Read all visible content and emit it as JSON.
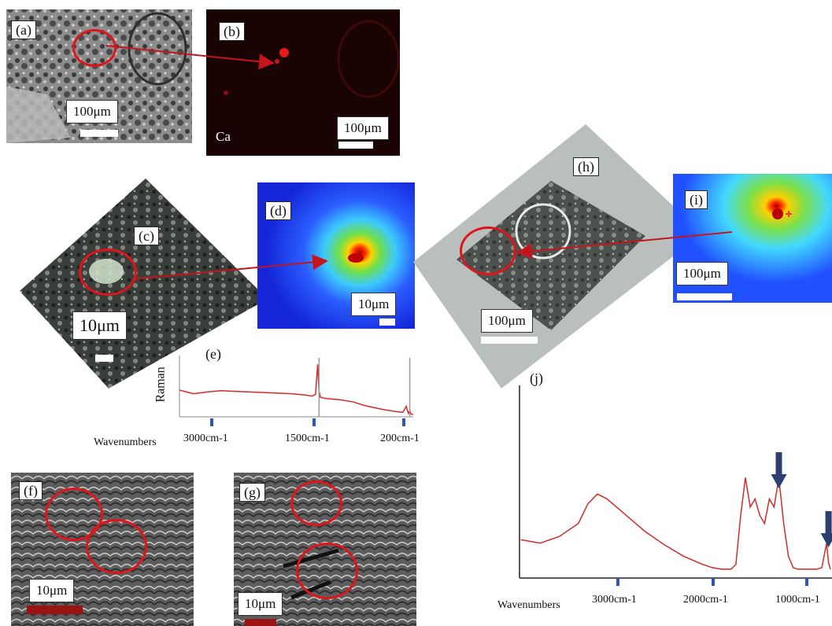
{
  "panels": {
    "a": {
      "label": "(a)",
      "scale": "100μm"
    },
    "b": {
      "label": "(b)",
      "scale": "100μm",
      "element": "Ca"
    },
    "c": {
      "label": "(c)",
      "scale": "10μm"
    },
    "d": {
      "label": "(d)",
      "scale": "10μm"
    },
    "e": {
      "label": "(e)"
    },
    "f": {
      "label": "(f)",
      "scale": "10μm"
    },
    "g": {
      "label": "(g)",
      "scale": "10μm"
    },
    "h": {
      "label": "(h)",
      "scale": "100μm"
    },
    "i": {
      "label": "(i)",
      "scale": "100μm"
    },
    "j": {
      "label": "(j)"
    }
  },
  "chart_data": [
    {
      "type": "line",
      "panel": "(e)",
      "ylabel": "Raman",
      "xlabel": "Wavenumbers",
      "xticks": [
        "3000cm-1",
        "1500cm-1",
        "200cm-1"
      ],
      "series": [
        {
          "x": [
            3500,
            3300,
            3100,
            2900,
            2700,
            2500,
            2300,
            2100,
            1900,
            1700,
            1600,
            1550,
            1520,
            1500,
            1480,
            1400,
            1200,
            1000,
            900,
            800,
            600,
            400,
            300,
            250,
            220,
            200,
            180,
            150
          ],
          "y": [
            0.42,
            0.36,
            0.39,
            0.41,
            0.4,
            0.39,
            0.38,
            0.37,
            0.36,
            0.34,
            0.32,
            0.35,
            0.85,
            0.4,
            0.3,
            0.28,
            0.26,
            0.22,
            0.18,
            0.15,
            0.1,
            0.06,
            0.05,
            0.15,
            0.03,
            0.08,
            0.02,
            0.01
          ]
        }
      ],
      "vlines": [
        1500,
        200
      ],
      "arrows": []
    },
    {
      "type": "line",
      "panel": "(j)",
      "xlabel": "Wavenumbers",
      "xticks": [
        "3000cm-1",
        "2000cm-1",
        "1000cm-1"
      ],
      "series": [
        {
          "x": [
            4000,
            3800,
            3600,
            3400,
            3300,
            3200,
            3100,
            3000,
            2900,
            2700,
            2500,
            2300,
            2100,
            2000,
            1900,
            1800,
            1750,
            1700,
            1650,
            1600,
            1550,
            1500,
            1450,
            1400,
            1350,
            1300,
            1250,
            1200,
            1150,
            1100,
            1000,
            900,
            850,
            800,
            780,
            760
          ],
          "y": [
            0.2,
            0.18,
            0.22,
            0.3,
            0.42,
            0.48,
            0.45,
            0.4,
            0.35,
            0.25,
            0.17,
            0.1,
            0.05,
            0.03,
            0.02,
            0.02,
            0.05,
            0.35,
            0.58,
            0.4,
            0.45,
            0.35,
            0.3,
            0.45,
            0.4,
            0.58,
            0.3,
            0.1,
            0.03,
            0.02,
            0.02,
            0.02,
            0.03,
            0.18,
            0.06,
            0.02
          ]
        }
      ],
      "arrows": [
        1300,
        780
      ]
    }
  ],
  "colors": {
    "circle": "#e0141a",
    "arrow": "#c4151c",
    "spectrum": "#d42a2a",
    "tick": "#2f57b0",
    "blue_arrow": "#2c3f70"
  }
}
